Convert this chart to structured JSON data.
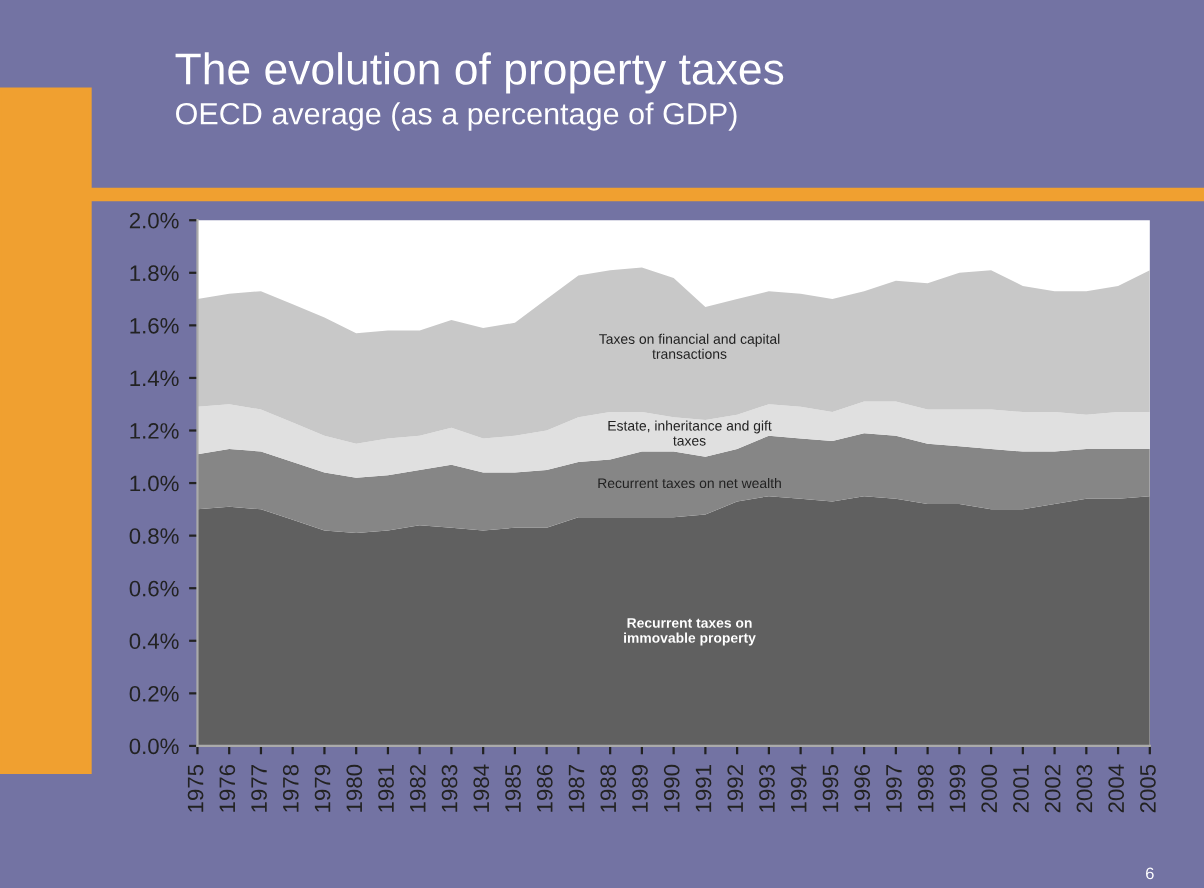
{
  "chart_data": {
    "type": "area",
    "stacked": true,
    "title": "The evolution of property taxes",
    "subtitle": "OECD average (as a percentage of GDP)",
    "categories": [
      "1975",
      "1976",
      "1977",
      "1978",
      "1979",
      "1980",
      "1981",
      "1982",
      "1983",
      "1984",
      "1985",
      "1986",
      "1987",
      "1988",
      "1989",
      "1990",
      "1991",
      "1992",
      "1993",
      "1994",
      "1995",
      "1996",
      "1997",
      "1998",
      "1999",
      "2000",
      "2001",
      "2002",
      "2003",
      "2004",
      "2005"
    ],
    "series": [
      {
        "name": "Recurrent taxes on\nimmovable property",
        "color": "#606060",
        "values": [
          0.9,
          0.91,
          0.9,
          0.86,
          0.82,
          0.81,
          0.82,
          0.84,
          0.83,
          0.82,
          0.83,
          0.83,
          0.87,
          0.87,
          0.87,
          0.87,
          0.88,
          0.93,
          0.95,
          0.94,
          0.93,
          0.95,
          0.94,
          0.92,
          0.92,
          0.9,
          0.9,
          0.92,
          0.94,
          0.94,
          0.95
        ]
      },
      {
        "name": "Recurrent taxes on net wealth",
        "color": "#868686",
        "values": [
          0.21,
          0.22,
          0.22,
          0.22,
          0.22,
          0.21,
          0.21,
          0.21,
          0.24,
          0.22,
          0.21,
          0.22,
          0.21,
          0.22,
          0.25,
          0.25,
          0.22,
          0.2,
          0.23,
          0.23,
          0.23,
          0.24,
          0.24,
          0.23,
          0.22,
          0.23,
          0.22,
          0.2,
          0.19,
          0.19,
          0.18
        ]
      },
      {
        "name": "Estate, inheritance and gift\ntaxes",
        "color": "#e0e0e0",
        "values": [
          0.18,
          0.17,
          0.16,
          0.15,
          0.14,
          0.13,
          0.14,
          0.13,
          0.14,
          0.13,
          0.14,
          0.15,
          0.17,
          0.18,
          0.15,
          0.13,
          0.14,
          0.13,
          0.12,
          0.12,
          0.11,
          0.12,
          0.13,
          0.13,
          0.14,
          0.15,
          0.15,
          0.15,
          0.13,
          0.14,
          0.14
        ]
      },
      {
        "name": "Taxes on financial and capital\ntransactions",
        "color": "#c8c8c8",
        "values": [
          0.41,
          0.42,
          0.45,
          0.45,
          0.45,
          0.42,
          0.41,
          0.4,
          0.41,
          0.42,
          0.43,
          0.5,
          0.54,
          0.54,
          0.55,
          0.53,
          0.43,
          0.44,
          0.43,
          0.43,
          0.43,
          0.42,
          0.46,
          0.48,
          0.52,
          0.53,
          0.48,
          0.46,
          0.47,
          0.48,
          0.54
        ]
      }
    ],
    "ylim": [
      0,
      2.0
    ],
    "yticks": [
      {
        "value": 0,
        "label": "0.0%"
      },
      {
        "value": 0.2,
        "label": "0.2%"
      },
      {
        "value": 0.4,
        "label": "0.4%"
      },
      {
        "value": 0.6,
        "label": "0.6%"
      },
      {
        "value": 0.8,
        "label": "0.8%"
      },
      {
        "value": 1.0,
        "label": "1.0%"
      },
      {
        "value": 1.2,
        "label": "1.2%"
      },
      {
        "value": 1.4,
        "label": "1.4%"
      },
      {
        "value": 1.6,
        "label": "1.6%"
      },
      {
        "value": 1.8,
        "label": "1.8%"
      },
      {
        "value": 2.0,
        "label": "2.0%"
      }
    ],
    "annotations": [
      "6"
    ]
  }
}
